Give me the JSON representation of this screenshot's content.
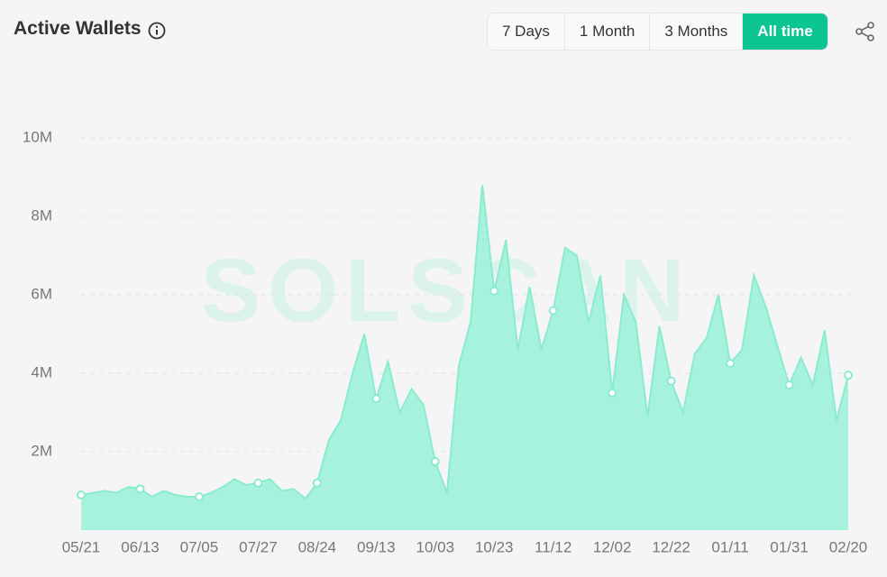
{
  "chart_data": {
    "type": "area",
    "title": "Active Wallets",
    "watermark": "SOLSCAN",
    "categories": [
      "05/21",
      null,
      null,
      null,
      null,
      "06/13",
      null,
      null,
      null,
      null,
      "07/05",
      null,
      null,
      null,
      null,
      "07/27",
      null,
      null,
      null,
      null,
      "08/24",
      null,
      null,
      null,
      null,
      "09/13",
      null,
      null,
      null,
      null,
      "10/03",
      null,
      null,
      null,
      null,
      "10/23",
      null,
      null,
      null,
      null,
      "11/12",
      null,
      null,
      null,
      null,
      "12/02",
      null,
      null,
      null,
      null,
      "12/22",
      null,
      null,
      null,
      null,
      "01/11",
      null,
      null,
      null,
      null,
      "01/31",
      null,
      null,
      null,
      null,
      "02/20"
    ],
    "values": [
      0.9,
      0.95,
      1.0,
      0.95,
      1.1,
      1.05,
      0.85,
      1.0,
      0.9,
      0.85,
      0.85,
      0.95,
      1.1,
      1.3,
      1.15,
      1.2,
      1.3,
      1.0,
      1.05,
      0.8,
      1.2,
      2.3,
      2.8,
      4.0,
      5.0,
      3.35,
      4.3,
      3.0,
      3.6,
      3.2,
      1.75,
      0.95,
      4.2,
      5.3,
      8.8,
      6.1,
      7.4,
      4.6,
      6.2,
      4.6,
      5.6,
      7.2,
      7.0,
      5.3,
      6.5,
      3.5,
      6.0,
      5.3,
      2.9,
      5.2,
      3.8,
      3.0,
      4.5,
      4.9,
      6.0,
      4.25,
      4.6,
      6.5,
      5.7,
      4.7,
      3.7,
      4.4,
      3.7,
      5.1,
      2.8,
      3.95
    ],
    "color": "#8aeccf",
    "fill": "#a6f2df",
    "ylim": [
      0,
      10
    ],
    "yticks": [
      {
        "value": 2,
        "label": "2M"
      },
      {
        "value": 4,
        "label": "4M"
      },
      {
        "value": 6,
        "label": "6M"
      },
      {
        "value": 8,
        "label": "8M"
      },
      {
        "value": 10,
        "label": "10M"
      }
    ],
    "grid": true
  },
  "range_buttons": [
    "7 Days",
    "1 Month",
    "3 Months",
    "All time"
  ],
  "active_range": 3
}
